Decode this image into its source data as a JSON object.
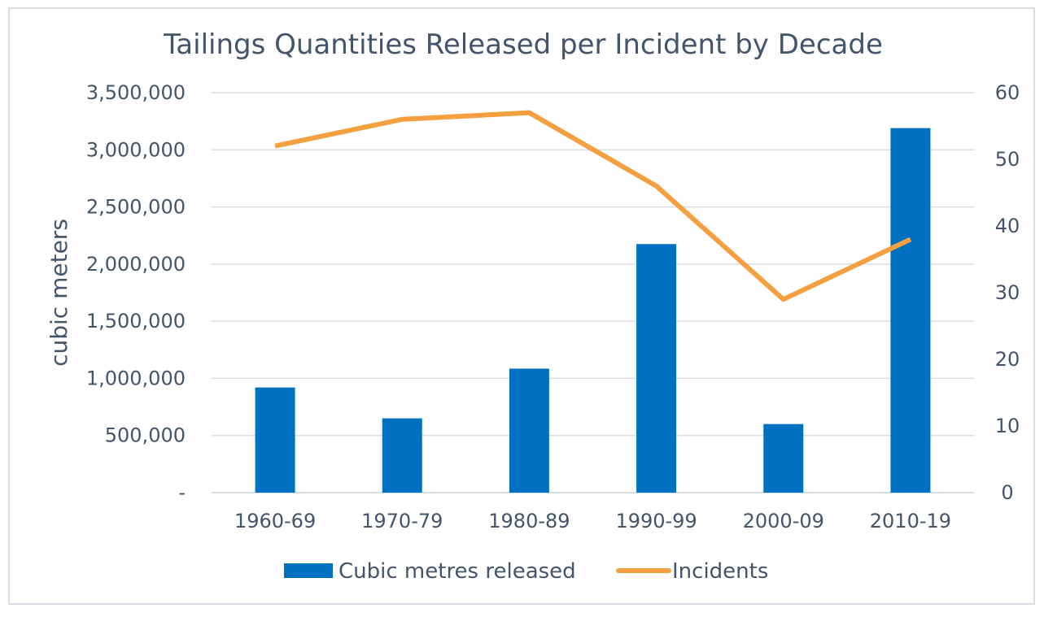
{
  "chart_data": {
    "type": "bar",
    "title": "Tailings Quantities Released per Incident by Decade",
    "xlabel": "",
    "ylabel": "cubic meters",
    "y2label": "",
    "categories": [
      "1960-69",
      "1970-79",
      "1980-89",
      "1990-99",
      "2000-09",
      "2010-19"
    ],
    "series": [
      {
        "name": "Cubic metres released",
        "type": "bar",
        "axis": "left",
        "color": "#0070c0",
        "values": [
          920000,
          650000,
          1085000,
          2175000,
          600000,
          3190000
        ]
      },
      {
        "name": "Incidents",
        "type": "line",
        "axis": "right",
        "color": "#f4a040",
        "values": [
          52,
          56,
          57,
          46,
          29,
          38
        ]
      }
    ],
    "ylim": [
      0,
      3500000
    ],
    "y2lim": [
      0,
      60
    ],
    "y_ticks": [
      "-",
      "500,000",
      "1,000,000",
      "1,500,000",
      "2,000,000",
      "2,500,000",
      "3,000,000",
      "3,500,000"
    ],
    "y2_ticks": [
      "0",
      "10",
      "20",
      "30",
      "40",
      "50",
      "60"
    ],
    "grid": true,
    "legend_position": "bottom",
    "gridline_color": "#d6dde4",
    "text_color": "#44546a"
  }
}
